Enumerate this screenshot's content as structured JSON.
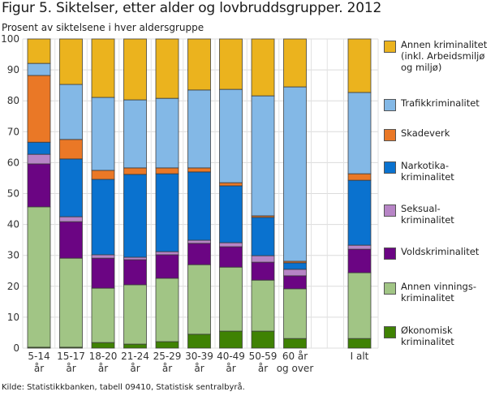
{
  "chart_data": {
    "type": "bar",
    "stacked": true,
    "title": "Figur 5. Siktelser, etter alder og lovbruddsgrupper. 2012",
    "subtitle": "Prosent av siktelsene i hver aldersgruppe",
    "source": "Kilde: Statistikkbanken, tabell 09410, Statistisk sentralbyrå.",
    "xlabel": "",
    "ylabel": "",
    "ylim": [
      0,
      100
    ],
    "yticks": [
      0,
      10,
      20,
      30,
      40,
      50,
      60,
      70,
      80,
      90,
      100
    ],
    "grid": true,
    "legend_position": "right",
    "categories": [
      {
        "line1": "5-14",
        "line2": "år"
      },
      {
        "line1": "15-17",
        "line2": "år"
      },
      {
        "line1": "18-20",
        "line2": "år"
      },
      {
        "line1": "21-24",
        "line2": "år"
      },
      {
        "line1": "25-29",
        "line2": "år"
      },
      {
        "line1": "30-39",
        "line2": "år"
      },
      {
        "line1": "40-49",
        "line2": "år"
      },
      {
        "line1": "50-59",
        "line2": "år"
      },
      {
        "line1": "60 år",
        "line2": "og over"
      },
      {
        "line1": "I alt",
        "line2": ""
      }
    ],
    "series": [
      {
        "name": "Økonomisk\nkriminalitet",
        "color": "#3f8203",
        "values": [
          0.3,
          0.3,
          1.8,
          1.3,
          2.1,
          4.5,
          5.5,
          5.5,
          3.1,
          3.1
        ]
      },
      {
        "name": "Annen vinnings-\nkriminalitet",
        "color": "#a1c585",
        "values": [
          45.4,
          28.8,
          17.6,
          19.2,
          20.5,
          22.5,
          20.7,
          16.5,
          16.1,
          21.3
        ]
      },
      {
        "name": "Voldskriminalitet",
        "color": "#6b0583",
        "values": [
          13.9,
          11.8,
          9.7,
          8.1,
          7.6,
          6.9,
          6.6,
          5.8,
          4.2,
          7.6
        ]
      },
      {
        "name": "Seksual-\nkriminalitet",
        "color": "#b785c6",
        "values": [
          3.1,
          1.6,
          1.1,
          0.8,
          1.0,
          1.0,
          1.3,
          2.1,
          2.1,
          1.3
        ]
      },
      {
        "name": "Narkotika-\nkriminalitet",
        "color": "#0a72cf",
        "values": [
          3.9,
          18.7,
          24.4,
          26.8,
          25.2,
          22.1,
          18.4,
          12.4,
          2.1,
          21.0
        ]
      },
      {
        "name": "Skadeverk",
        "color": "#ea7826",
        "values": [
          21.6,
          6.3,
          2.9,
          2.1,
          1.9,
          1.3,
          1.0,
          0.5,
          0.5,
          2.1
        ]
      },
      {
        "name": "Trafikkriminalitet",
        "color": "#83b8e6",
        "values": [
          3.9,
          17.8,
          23.6,
          22.0,
          22.5,
          25.2,
          30.2,
          38.8,
          56.4,
          26.3
        ]
      },
      {
        "name": "Annen kriminalitet\n(inkl. Arbeidsmiljø\nog miljø)",
        "color": "#ebb31e",
        "values": [
          7.9,
          14.7,
          18.9,
          19.7,
          19.2,
          16.5,
          16.3,
          18.4,
          15.5,
          17.3
        ]
      }
    ]
  }
}
